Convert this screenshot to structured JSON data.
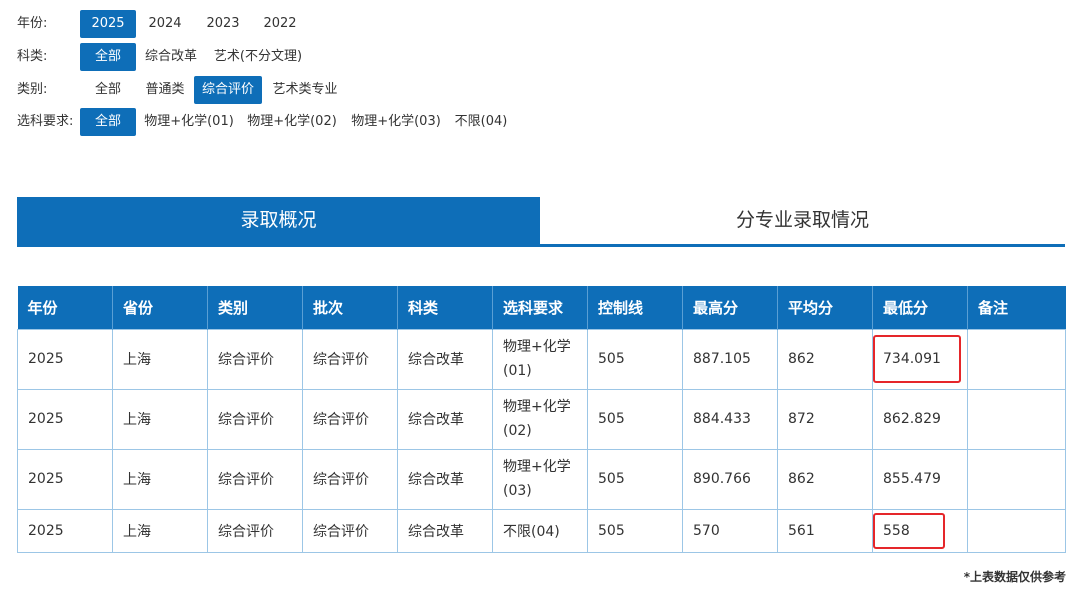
{
  "filters": {
    "year": {
      "label": "年份:",
      "options": [
        "2025",
        "2024",
        "2023",
        "2022"
      ],
      "selected": "2025"
    },
    "subject": {
      "label": "科类:",
      "options": [
        "全部",
        "综合改革",
        "艺术(不分文理)"
      ],
      "selected": "全部"
    },
    "category": {
      "label": "类别:",
      "options": [
        "全部",
        "普通类",
        "综合评价",
        "艺术类专业"
      ],
      "selected": "综合评价"
    },
    "requirement": {
      "label": "选科要求:",
      "options": [
        "全部",
        "物理+化学(01)",
        "物理+化学(02)",
        "物理+化学(03)",
        "不限(04)"
      ],
      "selected": "全部"
    }
  },
  "tabs": [
    "录取概况",
    "分专业录取情况"
  ],
  "table": {
    "headers": [
      "年份",
      "省份",
      "类别",
      "批次",
      "科类",
      "选科要求",
      "控制线",
      "最高分",
      "平均分",
      "最低分",
      "备注"
    ],
    "rows": [
      [
        "2025",
        "上海",
        "综合评价",
        "综合评价",
        "综合改革",
        "物理+化学(01)",
        "505",
        "887.105",
        "862",
        "734.091",
        ""
      ],
      [
        "2025",
        "上海",
        "综合评价",
        "综合评价",
        "综合改革",
        "物理+化学(02)",
        "505",
        "884.433",
        "872",
        "862.829",
        ""
      ],
      [
        "2025",
        "上海",
        "综合评价",
        "综合评价",
        "综合改革",
        "物理+化学(03)",
        "505",
        "890.766",
        "862",
        "855.479",
        ""
      ],
      [
        "2025",
        "上海",
        "综合评价",
        "综合评价",
        "综合改革",
        "不限(04)",
        "505",
        "570",
        "561",
        "558",
        ""
      ]
    ],
    "highlighted_cells": [
      "734.091",
      "558"
    ]
  },
  "footnote": "*上表数据仅供参考",
  "colors": {
    "accent": "#0e6eb8",
    "highlight_border": "#e5262a",
    "cell_border": "#9cc6e6"
  }
}
